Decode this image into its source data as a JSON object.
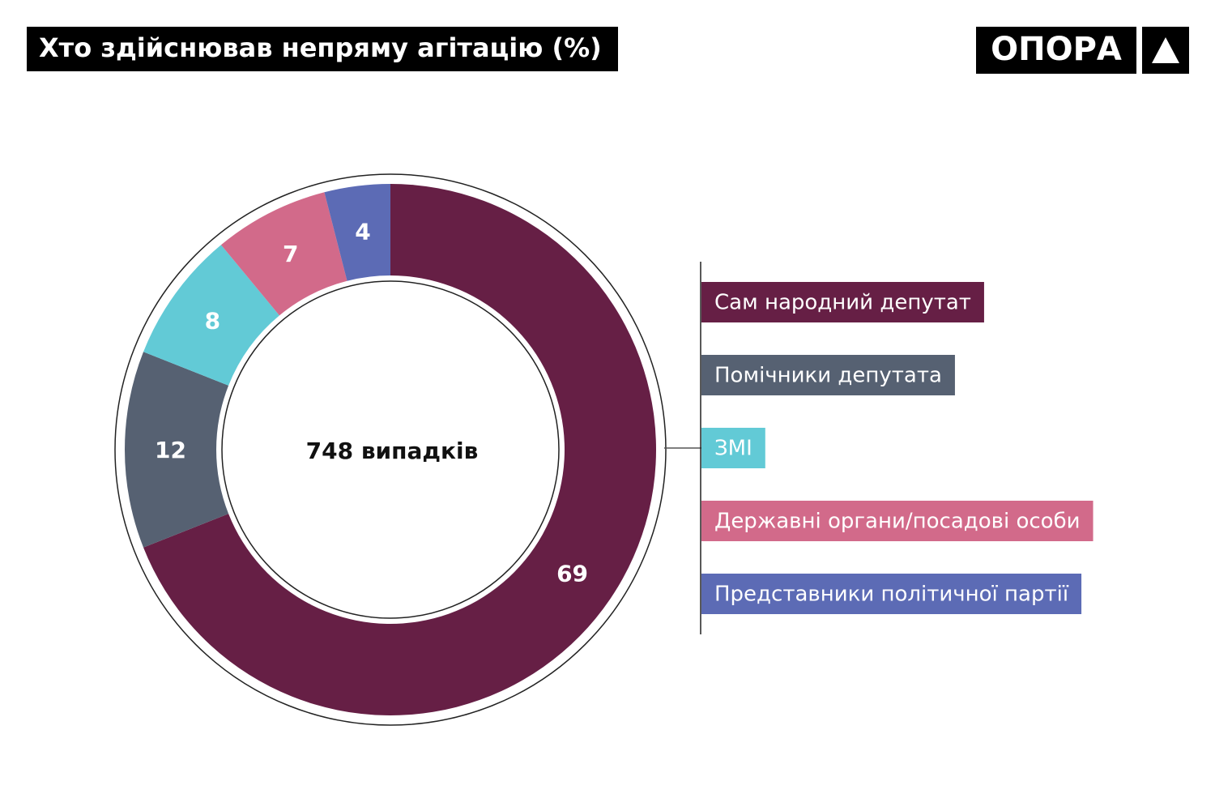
{
  "chart_data": {
    "type": "donut",
    "title": "Хто здійснював непряму агітацію (%)",
    "logo": "ОПОРА",
    "center_label": "748 випадків",
    "categories": [
      "Сам народний депутат",
      "Помічники депутата",
      "ЗМІ",
      "Державні органи/посадові особи",
      "Представники політичної партії"
    ],
    "values": [
      69,
      12,
      8,
      7,
      4
    ],
    "colors": [
      "#661f45",
      "#566172",
      "#62cad6",
      "#d26a8a",
      "#5c6bb5"
    ],
    "legend": "right"
  }
}
